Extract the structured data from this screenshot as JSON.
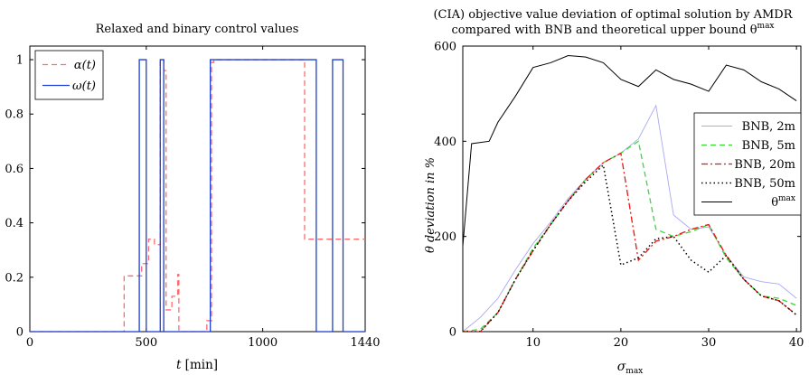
{
  "chart_data": [
    {
      "type": "line",
      "title": "Relaxed and binary control values",
      "xlabel": "t [min]",
      "ylabel": "",
      "xlim": [
        0,
        1440
      ],
      "ylim": [
        0,
        1.05
      ],
      "xticks": [
        0,
        500,
        1000,
        1440
      ],
      "xtick_labels": [
        "0",
        "500",
        "1000",
        "1440"
      ],
      "yticks": [
        0,
        0.2,
        0.4,
        0.6,
        0.8,
        1
      ],
      "ytick_labels": [
        "0",
        "0.2",
        "0.4",
        "0.6",
        "0.8",
        "1"
      ],
      "legend_placement": "top-left",
      "series": [
        {
          "name": "α(t)",
          "color": "#ff6b6b",
          "dash": "dashed",
          "x": [
            0,
            405,
            405,
            480,
            480,
            510,
            510,
            535,
            535,
            560,
            560,
            575,
            575,
            585,
            585,
            610,
            610,
            635,
            635,
            640,
            640,
            650,
            650,
            760,
            760,
            780,
            780,
            790,
            790,
            1180,
            1180,
            1440
          ],
          "y": [
            0,
            0,
            0.205,
            0.205,
            0.25,
            0.25,
            0.34,
            0.34,
            0.32,
            0.32,
            1.0,
            1.0,
            0.96,
            0.96,
            0.08,
            0.08,
            0.13,
            0.13,
            0.21,
            0.21,
            0.0,
            0.0,
            0.0,
            0.0,
            0.04,
            0.04,
            0.99,
            0.99,
            1.0,
            1.0,
            0.34,
            0.34
          ]
        },
        {
          "name": "ω(t)",
          "color": "#1f3fd6",
          "dash": "solid",
          "x": [
            0,
            470,
            470,
            500,
            500,
            560,
            560,
            575,
            575,
            620,
            620,
            775,
            775,
            1230,
            1230,
            1300,
            1300,
            1345,
            1345,
            1440
          ],
          "y": [
            0,
            0,
            1,
            1,
            0,
            0,
            1,
            1,
            0,
            0,
            0,
            0,
            1,
            1,
            0,
            0,
            1,
            1,
            0,
            0
          ]
        }
      ]
    },
    {
      "type": "line",
      "title": "(CIA) objective value deviation of optimal solution by AMDR",
      "subtitle": "compared with BNB and theoretical upper bound θ",
      "subtitle_sup": "max",
      "xlabel": "σ",
      "xlabel_sub": "max",
      "ylabel": "θ deviation in %",
      "xlim": [
        2,
        40.5
      ],
      "ylim": [
        0,
        600
      ],
      "xticks": [
        10,
        20,
        30,
        40
      ],
      "xtick_labels": [
        "10",
        "20",
        "30",
        "40"
      ],
      "yticks": [
        0,
        200,
        400,
        600
      ],
      "ytick_labels": [
        "0",
        "200",
        "400",
        "600"
      ],
      "legend_placement": "center-right",
      "series": [
        {
          "name": "BNB, 2m",
          "color": "#a9a9f2",
          "dash": "solid",
          "x": [
            2,
            4,
            6,
            8,
            10,
            12,
            14,
            16,
            18,
            20,
            22,
            24,
            26,
            28,
            30,
            32,
            34,
            36,
            38,
            40
          ],
          "y": [
            0,
            30,
            70,
            130,
            185,
            230,
            280,
            320,
            355,
            375,
            405,
            475,
            245,
            215,
            220,
            160,
            115,
            105,
            100,
            70
          ]
        },
        {
          "name": "BNB, 5m",
          "color": "#33dd33",
          "dash": "dashed",
          "x": [
            2,
            4,
            6,
            8,
            10,
            12,
            14,
            16,
            18,
            20,
            22,
            24,
            26,
            28,
            30,
            32,
            34,
            36,
            38,
            40
          ],
          "y": [
            0,
            5,
            40,
            110,
            175,
            225,
            275,
            320,
            355,
            375,
            400,
            215,
            200,
            210,
            225,
            155,
            110,
            75,
            70,
            55
          ]
        },
        {
          "name": "BNB, 20m",
          "color": "#ee1111",
          "dash": "dashdot",
          "x": [
            2,
            4,
            6,
            8,
            10,
            12,
            14,
            16,
            18,
            20,
            22,
            24,
            26,
            28,
            30,
            32,
            34,
            36,
            38,
            40
          ],
          "y": [
            0,
            0,
            40,
            110,
            170,
            225,
            275,
            320,
            355,
            375,
            150,
            190,
            200,
            215,
            225,
            160,
            110,
            75,
            65,
            35
          ]
        },
        {
          "name": "BNB, 50m",
          "color": "#000000",
          "dash": "dotted",
          "x": [
            2,
            4,
            6,
            8,
            10,
            12,
            14,
            16,
            18,
            20,
            22,
            24,
            26,
            28,
            30,
            32,
            34,
            36,
            38,
            40
          ],
          "y": [
            0,
            0,
            40,
            110,
            170,
            225,
            275,
            315,
            350,
            140,
            155,
            195,
            200,
            150,
            125,
            160,
            110,
            75,
            65,
            35
          ]
        },
        {
          "name": "θ",
          "name_sup": "max",
          "color": "#000000",
          "dash": "solid",
          "x": [
            2,
            3,
            5,
            6,
            8,
            10,
            12,
            14,
            16,
            18,
            20,
            22,
            24,
            26,
            28,
            30,
            32,
            34,
            36,
            38,
            40
          ],
          "y": [
            180,
            395,
            400,
            440,
            495,
            555,
            565,
            580,
            577,
            565,
            530,
            515,
            550,
            530,
            520,
            505,
            560,
            550,
            525,
            510,
            485
          ]
        }
      ]
    }
  ]
}
